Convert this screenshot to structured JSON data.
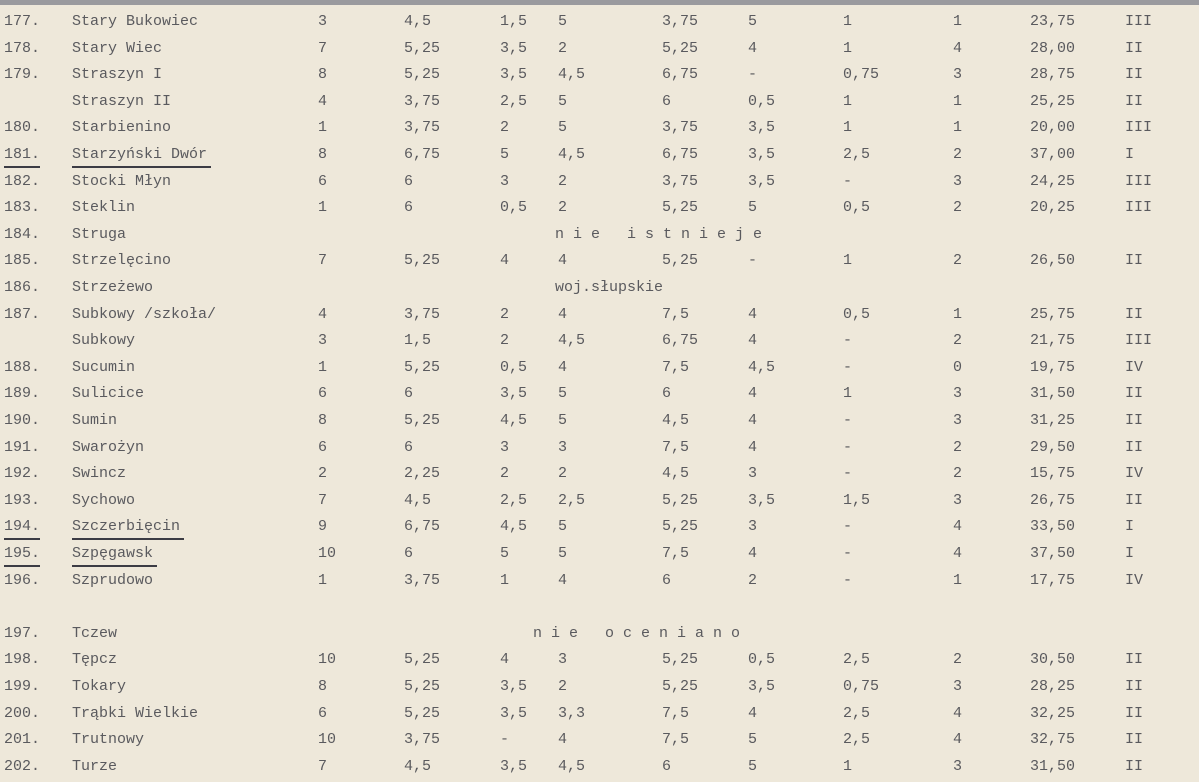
{
  "table": {
    "rows": [
      {
        "number": "177.",
        "name": "Stary Bukowiec",
        "cells": [
          "3",
          "4,5",
          "1,5",
          "5",
          "3,75",
          "5",
          "1",
          "1",
          "23,75",
          "III"
        ]
      },
      {
        "number": "178.",
        "name": "Stary Wiec",
        "cells": [
          "7",
          "5,25",
          "3,5",
          "2",
          "5,25",
          "4",
          "1",
          "4",
          "28,00",
          "II"
        ]
      },
      {
        "number": "179.",
        "name": "Straszyn I",
        "cells": [
          "8",
          "5,25",
          "3,5",
          "4,5",
          "6,75",
          "-",
          "0,75",
          "3",
          "28,75",
          "II"
        ]
      },
      {
        "name": "Straszyn II",
        "cells": [
          "4",
          "3,75",
          "2,5",
          "5",
          "6",
          "0,5",
          "1",
          "1",
          "25,25",
          "II"
        ]
      },
      {
        "number": "180.",
        "name": "Starbienino",
        "cells": [
          "1",
          "3,75",
          "2",
          "5",
          "3,75",
          "3,5",
          "1",
          "1",
          "20,00",
          "III"
        ]
      },
      {
        "number": "181.",
        "name": "Starzyński Dwór",
        "underlined": true,
        "cells": [
          "8",
          "6,75",
          "5",
          "4,5",
          "6,75",
          "3,5",
          "2,5",
          "2",
          "37,00",
          "I"
        ]
      },
      {
        "number": "182.",
        "name": "Stocki Młyn",
        "cells": [
          "6",
          "6",
          "3",
          "2",
          "3,75",
          "3,5",
          "-",
          "3",
          "24,25",
          "III"
        ]
      },
      {
        "number": "183.",
        "name": "Steklin",
        "cells": [
          "1",
          "6",
          "0,5",
          "2",
          "5,25",
          "5",
          "0,5",
          "2",
          "20,25",
          "III"
        ]
      },
      {
        "number": "184.",
        "name": "Struga",
        "note": "n i e   i s t n i e j e"
      },
      {
        "number": "185.",
        "name": "Strzelęcino",
        "cells": [
          "7",
          "5,25",
          "4",
          "4",
          "5,25",
          "-",
          "1",
          "2",
          "26,50",
          "II"
        ]
      },
      {
        "number": "186.",
        "name": "Strzeżewo",
        "note": "woj.słupskie"
      },
      {
        "number": "187.",
        "name": "Subkowy /szkoła/",
        "cells": [
          "4",
          "3,75",
          "2",
          "4",
          "7,5",
          "4",
          "0,5",
          "1",
          "25,75",
          "II"
        ]
      },
      {
        "name": "Subkowy",
        "cells": [
          "3",
          "1,5",
          "2",
          "4,5",
          "6,75",
          "4",
          "-",
          "2",
          "21,75",
          "III"
        ]
      },
      {
        "number": "188.",
        "name": "Sucumin",
        "cells": [
          "1",
          "5,25",
          "0,5",
          "4",
          "7,5",
          "4,5",
          "-",
          "0",
          "19,75",
          "IV"
        ]
      },
      {
        "number": "189.",
        "name": "Sulicice",
        "cells": [
          "6",
          "6",
          "3,5",
          "5",
          "6",
          "4",
          "1",
          "3",
          "31,50",
          "II"
        ]
      },
      {
        "number": "190.",
        "name": "Sumin",
        "cells": [
          "8",
          "5,25",
          "4,5",
          "5",
          "4,5",
          "4",
          "-",
          "3",
          "31,25",
          "II"
        ]
      },
      {
        "number": "191.",
        "name": "Swarożyn",
        "cells": [
          "6",
          "6",
          "3",
          "3",
          "7,5",
          "4",
          "-",
          "2",
          "29,50",
          "II"
        ]
      },
      {
        "number": "192.",
        "name": "Swincz",
        "cells": [
          "2",
          "2,25",
          "2",
          "2",
          "4,5",
          "3",
          "-",
          "2",
          "15,75",
          "IV"
        ]
      },
      {
        "number": "193.",
        "name": "Sychowo",
        "cells": [
          "7",
          "4,5",
          "2,5",
          "2,5",
          "5,25",
          "3,5",
          "1,5",
          "3",
          "26,75",
          "II"
        ]
      },
      {
        "number": "194.",
        "name": "Szczerbięcin",
        "underlined": true,
        "cells": [
          "9",
          "6,75",
          "4,5",
          "5",
          "5,25",
          "3",
          "-",
          "4",
          "33,50",
          "I"
        ]
      },
      {
        "number": "195.",
        "name": "Szpęgawsk",
        "underlined": true,
        "cells": [
          "10",
          "6",
          "5",
          "5",
          "7,5",
          "4",
          "-",
          "4",
          "37,50",
          "I"
        ]
      },
      {
        "number": "196.",
        "name": "Szprudowo",
        "cells": [
          "1",
          "3,75",
          "1",
          "4",
          "6",
          "2",
          "-",
          "1",
          "17,75",
          "IV"
        ]
      },
      {
        "number": "197.",
        "name": "Tczew",
        "section_break": true,
        "note": "n i e   o c e n i a n o"
      },
      {
        "number": "198.",
        "name": "Tępcz",
        "cells": [
          "10",
          "5,25",
          "4",
          "3",
          "5,25",
          "0,5",
          "2,5",
          "2",
          "30,50",
          "II"
        ]
      },
      {
        "number": "199.",
        "name": "Tokary",
        "cells": [
          "8",
          "5,25",
          "3,5",
          "2",
          "5,25",
          "3,5",
          "0,75",
          "3",
          "28,25",
          "II"
        ]
      },
      {
        "number": "200.",
        "name": "Trąbki Wielkie",
        "cells": [
          "6",
          "5,25",
          "3,5",
          "3,3",
          "7,5",
          "4",
          "2,5",
          "4",
          "32,25",
          "II"
        ]
      },
      {
        "number": "201.",
        "name": "Trutnowy",
        "cells": [
          "10",
          "3,75",
          "-",
          "4",
          "7,5",
          "5",
          "2,5",
          "4",
          "32,75",
          "II"
        ]
      },
      {
        "number": "202.",
        "name": "Turze",
        "cells": [
          "7",
          "4,5",
          "3,5",
          "4,5",
          "6",
          "5",
          "1",
          "3",
          "31,50",
          "II"
        ]
      }
    ]
  }
}
